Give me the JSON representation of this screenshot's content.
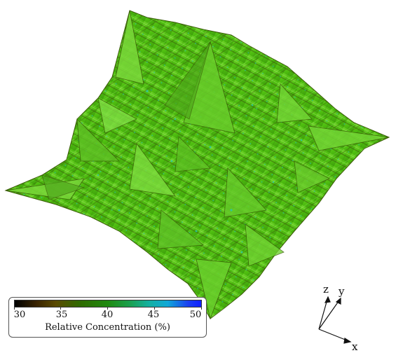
{
  "colorbar": {
    "ticks": [
      "30",
      "35",
      "40",
      "45",
      "50"
    ],
    "title": "Relative Concentration (%)",
    "range": [
      30,
      50
    ],
    "colors": [
      "#000000",
      "#5a4a00",
      "#1f8a10",
      "#14b0a0",
      "#1020ff"
    ]
  },
  "axes": {
    "z": "z",
    "y": "y",
    "x": "x"
  },
  "surface": {
    "base_color": "#4fbf10",
    "highlight_color": "#8de04a",
    "shadow_color": "#3a5a08",
    "accent_color": "#28c8b0"
  }
}
